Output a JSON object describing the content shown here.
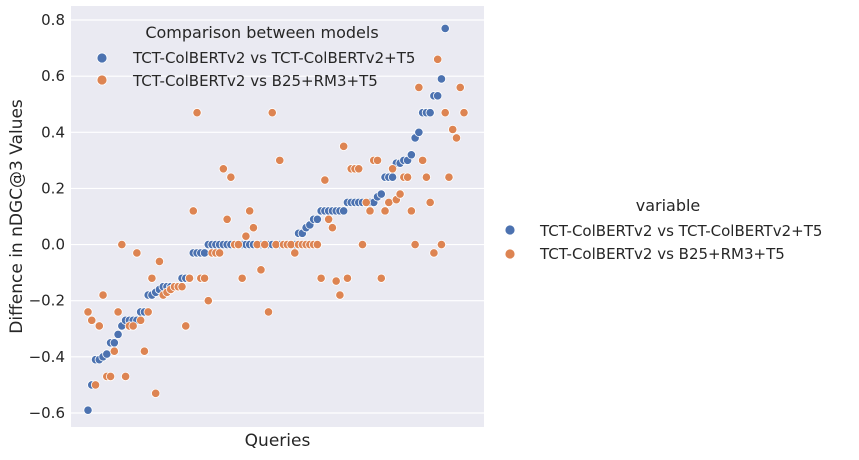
{
  "chart_data": {
    "type": "scatter",
    "xlabel": "Queries",
    "ylabel": "Diffence in nDGC@3 Values",
    "ylim": [
      -0.65,
      0.85
    ],
    "yticks": [
      -0.6,
      -0.4,
      -0.2,
      0.0,
      0.2,
      0.4,
      0.6,
      0.8
    ],
    "ytick_labels": [
      "−0.6",
      "−0.4",
      "−0.2",
      "0.0",
      "0.2",
      "0.4",
      "0.6",
      "0.8"
    ],
    "x_tick_labels_hidden": true,
    "grid": true,
    "legend_inner": {
      "title": "Comparison between models",
      "placement": "top-left"
    },
    "legend_outer": {
      "title": "variable",
      "placement": "right"
    },
    "series": [
      {
        "name": "TCT-ColBERTv2 vs TCT-ColBERTv2+T5",
        "color": "#4c72b0",
        "points": [
          [
            0,
            -0.59
          ],
          [
            1,
            -0.5
          ],
          [
            2,
            -0.41
          ],
          [
            3,
            -0.41
          ],
          [
            4,
            -0.4
          ],
          [
            5,
            -0.39
          ],
          [
            6,
            -0.35
          ],
          [
            7,
            -0.35
          ],
          [
            8,
            -0.32
          ],
          [
            9,
            -0.29
          ],
          [
            10,
            -0.27
          ],
          [
            11,
            -0.27
          ],
          [
            12,
            -0.27
          ],
          [
            13,
            -0.27
          ],
          [
            14,
            -0.24
          ],
          [
            15,
            -0.24
          ],
          [
            16,
            -0.18
          ],
          [
            17,
            -0.18
          ],
          [
            18,
            -0.17
          ],
          [
            19,
            -0.16
          ],
          [
            20,
            -0.15
          ],
          [
            21,
            -0.15
          ],
          [
            22,
            -0.15
          ],
          [
            23,
            -0.15
          ],
          [
            24,
            -0.15
          ],
          [
            25,
            -0.12
          ],
          [
            26,
            -0.12
          ],
          [
            27,
            -0.12
          ],
          [
            28,
            -0.03
          ],
          [
            29,
            -0.03
          ],
          [
            30,
            -0.03
          ],
          [
            31,
            -0.03
          ],
          [
            32,
            0.0
          ],
          [
            33,
            0.0
          ],
          [
            34,
            0.0
          ],
          [
            35,
            0.0
          ],
          [
            36,
            0.0
          ],
          [
            37,
            0.0
          ],
          [
            38,
            0.0
          ],
          [
            39,
            0.0
          ],
          [
            40,
            0.0
          ],
          [
            41,
            0.0
          ],
          [
            42,
            0.0
          ],
          [
            43,
            0.0
          ],
          [
            44,
            0.0
          ],
          [
            45,
            0.0
          ],
          [
            46,
            0.0
          ],
          [
            47,
            0.0
          ],
          [
            48,
            0.0
          ],
          [
            49,
            0.0
          ],
          [
            50,
            0.0
          ],
          [
            51,
            0.0
          ],
          [
            52,
            0.0
          ],
          [
            53,
            0.0
          ],
          [
            54,
            0.0
          ],
          [
            55,
            0.0
          ],
          [
            56,
            0.04
          ],
          [
            57,
            0.04
          ],
          [
            58,
            0.06
          ],
          [
            59,
            0.07
          ],
          [
            60,
            0.09
          ],
          [
            61,
            0.09
          ],
          [
            62,
            0.12
          ],
          [
            63,
            0.12
          ],
          [
            64,
            0.12
          ],
          [
            65,
            0.12
          ],
          [
            66,
            0.12
          ],
          [
            67,
            0.12
          ],
          [
            68,
            0.12
          ],
          [
            69,
            0.15
          ],
          [
            70,
            0.15
          ],
          [
            71,
            0.15
          ],
          [
            72,
            0.15
          ],
          [
            73,
            0.15
          ],
          [
            74,
            0.15
          ],
          [
            75,
            0.15
          ],
          [
            76,
            0.15
          ],
          [
            77,
            0.17
          ],
          [
            78,
            0.18
          ],
          [
            79,
            0.24
          ],
          [
            80,
            0.24
          ],
          [
            81,
            0.24
          ],
          [
            82,
            0.29
          ],
          [
            83,
            0.29
          ],
          [
            84,
            0.3
          ],
          [
            85,
            0.3
          ],
          [
            86,
            0.32
          ],
          [
            87,
            0.38
          ],
          [
            88,
            0.4
          ],
          [
            89,
            0.47
          ],
          [
            90,
            0.47
          ],
          [
            91,
            0.47
          ],
          [
            92,
            0.53
          ],
          [
            93,
            0.53
          ],
          [
            94,
            0.59
          ],
          [
            95,
            0.77
          ]
        ]
      },
      {
        "name": "TCT-ColBERTv2 vs B25+RM3+T5",
        "color": "#dd8452",
        "points": [
          [
            0,
            -0.24
          ],
          [
            1,
            -0.27
          ],
          [
            2,
            -0.5
          ],
          [
            3,
            -0.29
          ],
          [
            4,
            -0.18
          ],
          [
            5,
            -0.47
          ],
          [
            6,
            -0.47
          ],
          [
            7,
            -0.38
          ],
          [
            8,
            -0.24
          ],
          [
            9,
            0.0
          ],
          [
            10,
            -0.47
          ],
          [
            11,
            -0.29
          ],
          [
            12,
            -0.29
          ],
          [
            13,
            -0.03
          ],
          [
            14,
            -0.27
          ],
          [
            15,
            -0.38
          ],
          [
            16,
            -0.24
          ],
          [
            17,
            -0.12
          ],
          [
            18,
            -0.53
          ],
          [
            19,
            -0.06
          ],
          [
            20,
            -0.18
          ],
          [
            21,
            -0.17
          ],
          [
            22,
            -0.16
          ],
          [
            23,
            -0.15
          ],
          [
            24,
            -0.15
          ],
          [
            25,
            -0.15
          ],
          [
            26,
            -0.29
          ],
          [
            27,
            -0.12
          ],
          [
            28,
            0.12
          ],
          [
            29,
            0.47
          ],
          [
            30,
            -0.12
          ],
          [
            31,
            -0.12
          ],
          [
            32,
            -0.2
          ],
          [
            33,
            -0.03
          ],
          [
            34,
            -0.03
          ],
          [
            35,
            -0.03
          ],
          [
            36,
            0.27
          ],
          [
            37,
            0.09
          ],
          [
            38,
            0.24
          ],
          [
            39,
            0.0
          ],
          [
            40,
            0.0
          ],
          [
            41,
            -0.12
          ],
          [
            42,
            0.03
          ],
          [
            43,
            0.12
          ],
          [
            44,
            0.06
          ],
          [
            45,
            0.0
          ],
          [
            46,
            -0.09
          ],
          [
            47,
            0.0
          ],
          [
            48,
            -0.24
          ],
          [
            49,
            0.47
          ],
          [
            50,
            0.0
          ],
          [
            51,
            0.3
          ],
          [
            52,
            0.0
          ],
          [
            53,
            0.0
          ],
          [
            54,
            0.0
          ],
          [
            55,
            -0.03
          ],
          [
            56,
            0.0
          ],
          [
            57,
            0.0
          ],
          [
            58,
            0.0
          ],
          [
            59,
            0.0
          ],
          [
            60,
            0.0
          ],
          [
            61,
            0.0
          ],
          [
            62,
            -0.12
          ],
          [
            63,
            0.23
          ],
          [
            64,
            0.09
          ],
          [
            65,
            0.06
          ],
          [
            66,
            -0.13
          ],
          [
            67,
            -0.18
          ],
          [
            68,
            0.35
          ],
          [
            69,
            -0.12
          ],
          [
            70,
            0.27
          ],
          [
            71,
            0.27
          ],
          [
            72,
            0.27
          ],
          [
            73,
            0.0
          ],
          [
            74,
            0.15
          ],
          [
            75,
            0.12
          ],
          [
            76,
            0.3
          ],
          [
            77,
            0.3
          ],
          [
            78,
            -0.12
          ],
          [
            79,
            0.12
          ],
          [
            80,
            0.15
          ],
          [
            81,
            0.27
          ],
          [
            82,
            0.16
          ],
          [
            83,
            0.18
          ],
          [
            84,
            0.24
          ],
          [
            85,
            0.24
          ],
          [
            86,
            0.12
          ],
          [
            87,
            0.0
          ],
          [
            88,
            0.56
          ],
          [
            89,
            0.3
          ],
          [
            90,
            0.24
          ],
          [
            91,
            0.15
          ],
          [
            92,
            -0.03
          ],
          [
            93,
            0.66
          ],
          [
            94,
            0.0
          ],
          [
            95,
            0.47
          ],
          [
            96,
            0.24
          ],
          [
            97,
            0.41
          ],
          [
            98,
            0.38
          ],
          [
            99,
            0.56
          ],
          [
            100,
            0.47
          ]
        ]
      }
    ]
  }
}
